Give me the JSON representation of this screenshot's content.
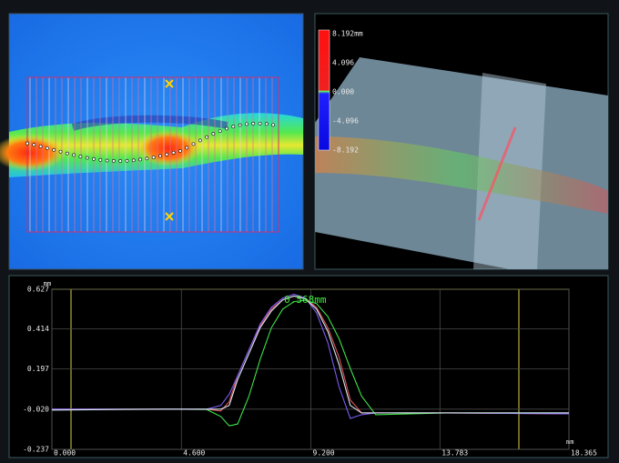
{
  "colorbar": {
    "labels": [
      "8.192mm",
      "4.096",
      "0.000",
      "-4.096",
      "-8.192"
    ]
  },
  "chart_data": {
    "type": "line",
    "annotation": "0.568mm",
    "xlabel": "mm",
    "ylabel": "mm",
    "x": [
      0,
      4,
      5.5,
      6.0,
      6.3,
      6.6,
      7.0,
      7.4,
      7.8,
      8.2,
      8.6,
      9.0,
      9.4,
      9.8,
      10.2,
      10.6,
      11.0,
      11.5,
      14,
      18.365
    ],
    "series": [
      {
        "color": "#3ee24a",
        "values": [
          -0.02,
          -0.02,
          -0.022,
          -0.06,
          -0.11,
          -0.1,
          0.05,
          0.25,
          0.42,
          0.52,
          0.56,
          0.568,
          0.55,
          0.48,
          0.36,
          0.2,
          0.05,
          -0.05,
          -0.04,
          -0.04
        ]
      },
      {
        "color": "#e0505a",
        "values": [
          -0.02,
          -0.02,
          -0.02,
          -0.03,
          0.02,
          0.16,
          0.3,
          0.43,
          0.52,
          0.57,
          0.59,
          0.58,
          0.53,
          0.42,
          0.26,
          0.03,
          -0.04,
          -0.04,
          -0.04,
          -0.045
        ]
      },
      {
        "color": "#7a5cf0",
        "values": [
          -0.02,
          -0.02,
          -0.02,
          0.0,
          0.06,
          0.16,
          0.3,
          0.44,
          0.53,
          0.58,
          0.6,
          0.58,
          0.5,
          0.34,
          0.1,
          -0.07,
          -0.05,
          -0.04,
          -0.04,
          -0.045
        ]
      },
      {
        "color": "#d8e8f0",
        "values": [
          -0.025,
          -0.02,
          -0.02,
          -0.02,
          0.0,
          0.14,
          0.28,
          0.42,
          0.51,
          0.57,
          0.59,
          0.575,
          0.52,
          0.4,
          0.22,
          0.0,
          -0.04,
          -0.04,
          -0.04,
          -0.04
        ]
      }
    ],
    "xlim": [
      0,
      18.365
    ],
    "xticks": [
      {
        "value": 0,
        "label": "0.000"
      },
      {
        "value": 4.6,
        "label": "4.600"
      },
      {
        "value": 9.2,
        "label": "9.200"
      },
      13.783,
      18.365
    ],
    "ylim": [
      -0.237,
      0.627
    ],
    "yticks": [
      -0.237,
      {
        "value": -0.02,
        "label": "-0.020"
      },
      0.197,
      0.414,
      0.627
    ],
    "grid": true
  }
}
